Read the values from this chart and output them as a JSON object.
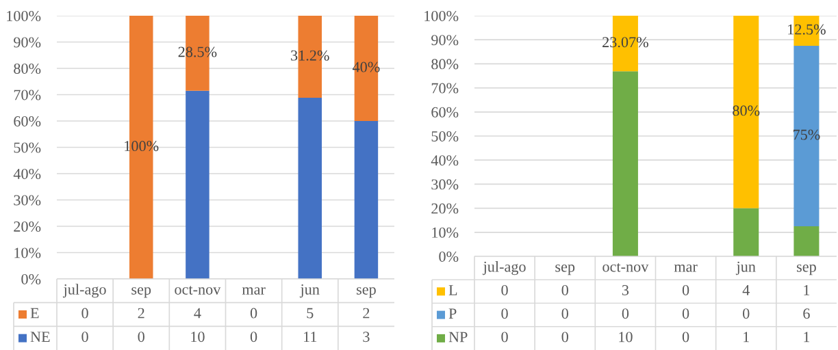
{
  "chart_data": [
    {
      "type": "bar",
      "categories": [
        null,
        null,
        null,
        null,
        null,
        null
      ],
      "stacked": true,
      "ylim": [
        0,
        100
      ],
      "yticks": [
        {
          "value": 0,
          "label": "0%"
        },
        {
          "value": 10,
          "label": "10%"
        },
        {
          "value": 20,
          "label": "20%"
        },
        {
          "value": 30,
          "label": "30%"
        },
        {
          "value": 40,
          "label": "40%"
        },
        {
          "value": 50,
          "label": "50%"
        },
        {
          "value": 60,
          "label": "60%"
        },
        {
          "value": 70,
          "label": "70%"
        },
        {
          "value": 80,
          "label": "80%"
        },
        {
          "value": 90,
          "label": "90%"
        },
        {
          "value": 100,
          "label": "100%"
        }
      ],
      "grid": "y",
      "series": [
        {
          "color": "#4472c4",
          "values": [
            null,
            0,
            71.5,
            null,
            68.8,
            60
          ]
        },
        {
          "color": "#ed7d31",
          "values": [
            null,
            100,
            28.5,
            null,
            31.2,
            40
          ],
          "value_labels": [
            null,
            "100%",
            "28.5%",
            null,
            "31.2%",
            "40%"
          ]
        }
      ]
    },
    {
      "type": "other",
      "categories": [
        "jul-ago",
        "sep",
        "oct-nov",
        "mar",
        "jun",
        "sep"
      ],
      "data_labels": true,
      "series": [
        {
          "name": "E",
          "color": "#ed7d31",
          "values": [
            0,
            2,
            4,
            0,
            5,
            2
          ]
        },
        {
          "name": "NE",
          "color": "#4472c4",
          "values": [
            0,
            0,
            10,
            0,
            11,
            3
          ]
        }
      ]
    },
    {
      "type": "bar",
      "categories": [
        null,
        null,
        null,
        null,
        null,
        null
      ],
      "stacked": true,
      "ylim": [
        0,
        100
      ],
      "yticks": [
        {
          "value": 0,
          "label": "0%"
        },
        {
          "value": 10,
          "label": "10%"
        },
        {
          "value": 20,
          "label": "20%"
        },
        {
          "value": 30,
          "label": "30%"
        },
        {
          "value": 40,
          "label": "40%"
        },
        {
          "value": 50,
          "label": "50%"
        },
        {
          "value": 60,
          "label": "60%"
        },
        {
          "value": 70,
          "label": "70%"
        },
        {
          "value": 80,
          "label": "80%"
        },
        {
          "value": 90,
          "label": "90%"
        },
        {
          "value": 100,
          "label": "100%"
        }
      ],
      "grid": "y",
      "series": [
        {
          "color": "#70ad47",
          "values": [
            null,
            null,
            76.93,
            null,
            20,
            12.5
          ]
        },
        {
          "color": "#5b9bd5",
          "values": [
            null,
            null,
            0,
            null,
            0,
            75
          ],
          "value_labels": [
            null,
            null,
            null,
            null,
            null,
            "75%"
          ]
        },
        {
          "color": "#ffc000",
          "values": [
            null,
            null,
            23.07,
            null,
            80,
            12.5
          ],
          "value_labels": [
            null,
            null,
            "23.07%",
            null,
            "80%",
            "12.5%"
          ]
        }
      ]
    },
    {
      "type": "other",
      "categories": [
        "jul-ago",
        "sep",
        "oct-nov",
        "mar",
        "jun",
        "sep"
      ],
      "data_labels": true,
      "series": [
        {
          "name": "L",
          "color": "#ffc000",
          "values": [
            0,
            0,
            3,
            0,
            4,
            1
          ]
        },
        {
          "name": "P",
          "color": "#5b9bd5",
          "values": [
            0,
            0,
            0,
            0,
            0,
            6
          ]
        },
        {
          "name": "NP",
          "color": "#70ad47",
          "values": [
            0,
            0,
            10,
            0,
            1,
            1
          ]
        }
      ]
    }
  ]
}
